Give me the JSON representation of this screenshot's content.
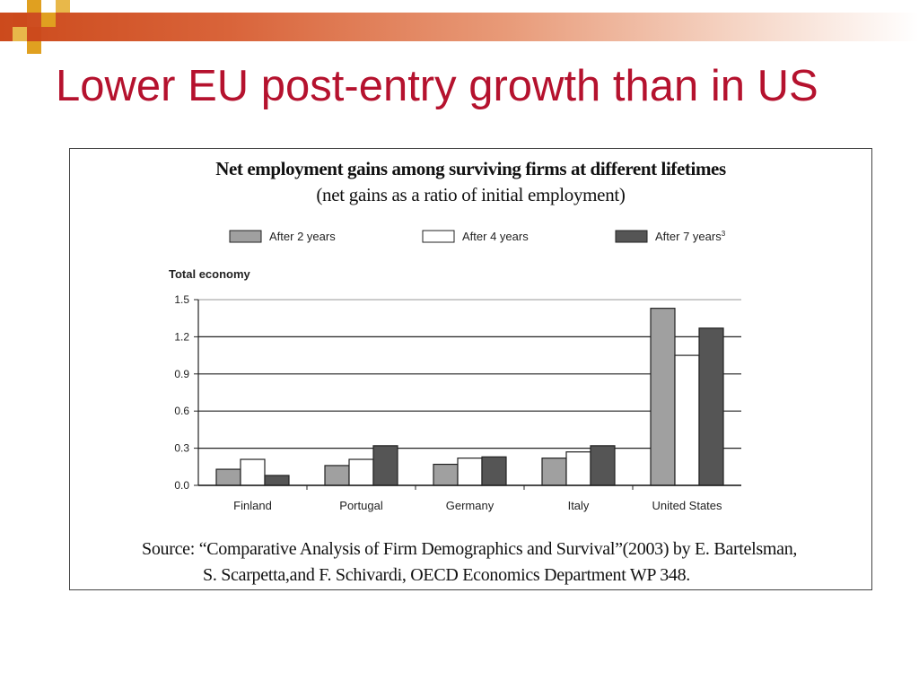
{
  "slide": {
    "title": "Lower EU post-entry growth than in US"
  },
  "colors": {
    "title": "#b5122e",
    "bar_gradient_start": "#cc4a1c",
    "deco_dark": "#cc4a1c",
    "deco_gold": "#e0a020"
  },
  "source": {
    "line1": "Source: “Comparative Analysis of Firm Demographics and Survival”(2003) by E. Bartelsman,",
    "line2": "S. Scarpetta,and F. Schivardi, OECD Economics Department WP 348."
  },
  "chart_data": {
    "type": "bar",
    "title": "Net employment gains among surviving firms at different lifetimes",
    "subtitle": "(net gains as a ratio of initial employment)",
    "panel_label": "Total economy",
    "categories": [
      "Finland",
      "Portugal",
      "Germany",
      "Italy",
      "United States"
    ],
    "series": [
      {
        "name": "After 2 years",
        "color": "#a0a0a0",
        "values": [
          0.13,
          0.16,
          0.17,
          0.22,
          1.43
        ]
      },
      {
        "name": "After 4 years",
        "color": "#ffffff",
        "values": [
          0.21,
          0.21,
          0.22,
          0.27,
          1.05
        ]
      },
      {
        "name": "After 7 years",
        "color": "#555555",
        "superscript": "3",
        "values": [
          0.08,
          0.32,
          0.23,
          0.32,
          1.27
        ]
      }
    ],
    "ylim": [
      0,
      1.5
    ],
    "yticks": [
      "0.0",
      "0.3",
      "0.6",
      "0.9",
      "1.2",
      "1.5"
    ],
    "grid": true,
    "legend_position": "top"
  }
}
